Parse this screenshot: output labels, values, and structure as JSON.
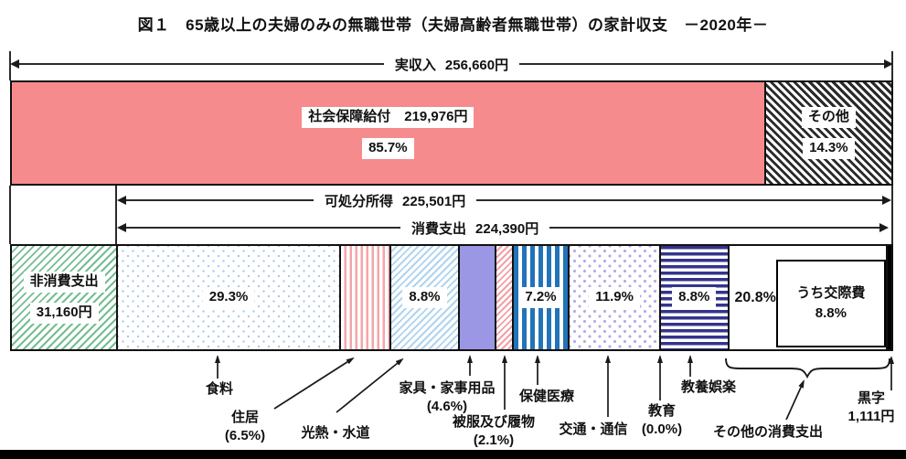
{
  "title": "図１　65歳以上の夫婦のみの無職世帯（夫婦高齢者無職世帯）の家計収支　－2020年－",
  "arrows": {
    "income": {
      "label": "実収入",
      "value": "256,660円"
    },
    "disposable": {
      "label": "可処分所得",
      "value": "225,501円"
    },
    "consumption": {
      "label": "消費支出",
      "value": "224,390円"
    }
  },
  "callouts": {
    "food": {
      "label": "食料"
    },
    "housing": {
      "label": "住居",
      "pct": "(6.5%)"
    },
    "utilities": {
      "label": "光熱・水道"
    },
    "furniture": {
      "label": "家具・家事用品",
      "pct": "(4.6%)"
    },
    "clothing": {
      "label": "被服及び履物",
      "pct": "(2.1%)"
    },
    "medical": {
      "label": "保健医療"
    },
    "transport": {
      "label": "交通・通信"
    },
    "education": {
      "label": "教育",
      "pct": "(0.0%)"
    },
    "recreation": {
      "label": "教養娯楽"
    },
    "other": {
      "label": "その他の消費支出"
    },
    "surplus": {
      "label": "黒字",
      "value": "1,111円"
    }
  },
  "chart_data": {
    "type": "bar",
    "subtype": "stacked-composition",
    "title": "図１　65歳以上の夫婦のみの無職世帯（夫婦高齢者無職世帯）の家計収支 －2020年－",
    "totals": {
      "actual_income_yen": 256660,
      "social_security_yen": 219976,
      "disposable_income_yen": 225501,
      "consumption_expenditure_yen": 224390,
      "non_consumption_expenditure_yen": 31160,
      "surplus_yen": 1111
    },
    "income_bar": {
      "segments": [
        {
          "key": "social-security",
          "pattern": "pink-solid",
          "width": 85.7,
          "labels": [
            "社会保障給付　219,976円",
            "85.7%"
          ],
          "pct_of_income": 85.7
        },
        {
          "key": "other-income",
          "pattern": "black-hatch",
          "width": 14.3,
          "labels": [
            "その他",
            "14.3%"
          ],
          "pct_of_income": 14.3
        }
      ]
    },
    "expenditure_bar": {
      "segments": [
        {
          "key": "non-consumption",
          "pattern": "green-hatch",
          "width": 12.14,
          "labels": [
            "非消費支出",
            "31,160円"
          ]
        },
        {
          "key": "food",
          "pattern": "dots-blue",
          "width": 25.62,
          "labels": [
            "29.3%"
          ],
          "pct_of_consumption": 29.3
        },
        {
          "key": "housing",
          "pattern": "vstripe-pink",
          "width": 5.68,
          "labels": [],
          "pct_of_consumption": 6.5
        },
        {
          "key": "utilities",
          "pattern": "diag-blue",
          "width": 7.69,
          "labels": [
            "8.8%"
          ],
          "pct_of_consumption": 8.8
        },
        {
          "key": "furniture",
          "pattern": "solid-purple",
          "width": 4.02,
          "labels": [],
          "pct_of_consumption": 4.6
        },
        {
          "key": "clothing",
          "pattern": "diag-pink",
          "width": 1.84,
          "labels": [],
          "pct_of_consumption": 2.1
        },
        {
          "key": "medical",
          "pattern": "vstripe-blue",
          "width": 6.29,
          "labels": [
            "7.2%"
          ],
          "pct_of_consumption": 7.2
        },
        {
          "key": "transport",
          "pattern": "chevron-purple",
          "width": 10.4,
          "labels": [
            "11.9%"
          ],
          "pct_of_consumption": 11.9
        },
        {
          "key": "education",
          "pattern": "none",
          "width": 0,
          "labels": [],
          "pct_of_consumption": 0.0
        },
        {
          "key": "recreation",
          "pattern": "hstripe-navy",
          "width": 7.69,
          "labels": [
            "8.8%"
          ],
          "pct_of_consumption": 8.8
        },
        {
          "key": "other-consumption",
          "pattern": "white",
          "width": 18.19,
          "labels": [
            "20.8%"
          ],
          "align": "left",
          "pct_of_consumption": 20.8,
          "inner_box": [
            "うち交際費",
            "8.8%"
          ]
        },
        {
          "key": "surplus",
          "pattern": "black-solid",
          "width": 0.44,
          "labels": []
        }
      ]
    }
  }
}
